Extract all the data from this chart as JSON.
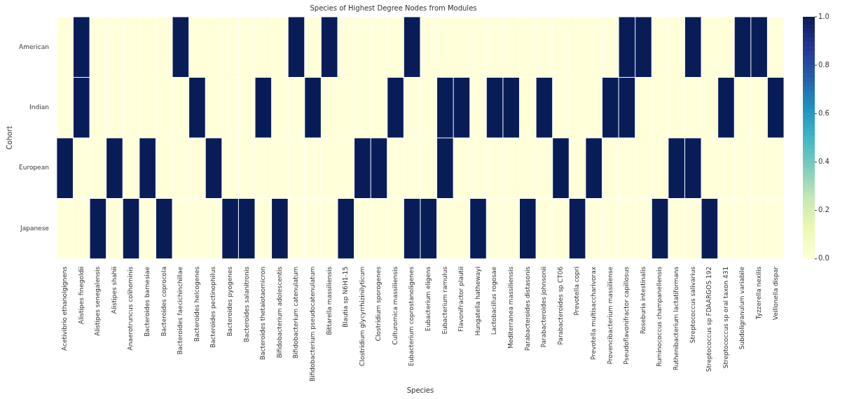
{
  "chart_data": {
    "type": "heatmap",
    "title": "Species of Highest Degree Nodes from Modules",
    "xlabel": "Species",
    "ylabel": "Cohort",
    "categories": [
      "Acetivibrio ethanolgignens",
      "Alistipes finegoldii",
      "Alistipes senegalensis",
      "Alistipes shahii",
      "Anaerotruncus colihominis",
      "Bacteroides barnesiae",
      "Bacteroides coprocola",
      "Bacteroides faecichinchillae",
      "Bacteroides helcogenes",
      "Bacteroides pectinophilus",
      "Bacteroides pyogenes",
      "Bacteroides salanitronis",
      "Bacteroides thetaiotaomicron",
      "Bifidobacterium adolescentis",
      "Bifidobacterium catenulatum",
      "Bifidobacterium pseudocatenulatum",
      "Bittarella massiliensis",
      "Blautia sp N6H1-15",
      "Clostridium glycyrrhizinilyticum",
      "Clostridium sporogenes",
      "Culturomica massiliensis",
      "Eubacterium coprostanoligenes",
      "Eubacterium eligens",
      "Eubacterium ramulus",
      "Flavonifractor plautii",
      "Hungatella hathewayi",
      "Lactobacillus rogosae",
      "Mediterranea massiliensis",
      "Parabacteroides distasonis",
      "Parabacteroides johnsonii",
      "Parabacteroides sp CT06",
      "Prevotella copri",
      "Prevotella multisaccharivorax",
      "Provencibacterium massiliense",
      "Pseudoflavonifractor capillosus",
      "Roseburia intestinalis",
      "Ruminococcus champanellensis",
      "Ruthenibacterium lactatiformans",
      "Streptococcus salivarius",
      "Streptococcus sp FDAARGOS 192",
      "Streptococcus sp oral taxon 431",
      "Subdoligranulum variabile",
      "Tyzzerella nexilis",
      "Veillonella dispar"
    ],
    "y_categories": [
      "American",
      "Indian",
      "European",
      "Japanese"
    ],
    "cells": [
      [
        0,
        1,
        0,
        0,
        0,
        0,
        0,
        1,
        0,
        0,
        0,
        0,
        0,
        0,
        1,
        0,
        1,
        0,
        0,
        0,
        0,
        1,
        0,
        0,
        0,
        0,
        0,
        0,
        0,
        0,
        0,
        0,
        0,
        0,
        1,
        1,
        0,
        0,
        1,
        0,
        0,
        1,
        1,
        0
      ],
      [
        0,
        1,
        0,
        0,
        0,
        0,
        0,
        0,
        1,
        0,
        0,
        0,
        1,
        0,
        0,
        1,
        0,
        0,
        0,
        0,
        1,
        0,
        0,
        1,
        1,
        0,
        1,
        1,
        0,
        1,
        0,
        0,
        0,
        1,
        1,
        0,
        0,
        0,
        0,
        0,
        1,
        0,
        0,
        1
      ],
      [
        1,
        0,
        0,
        1,
        0,
        1,
        0,
        0,
        0,
        1,
        0,
        0,
        0,
        0,
        0,
        0,
        0,
        0,
        1,
        1,
        0,
        0,
        0,
        1,
        0,
        0,
        0,
        0,
        0,
        0,
        1,
        0,
        1,
        0,
        0,
        0,
        0,
        1,
        1,
        0,
        0,
        0,
        0,
        0
      ],
      [
        0,
        0,
        1,
        0,
        1,
        0,
        1,
        0,
        0,
        0,
        1,
        1,
        0,
        1,
        0,
        0,
        0,
        1,
        0,
        0,
        0,
        1,
        1,
        0,
        0,
        1,
        0,
        0,
        1,
        0,
        0,
        1,
        0,
        0,
        0,
        0,
        1,
        0,
        0,
        1,
        0,
        0,
        0,
        0
      ]
    ],
    "clim": [
      0,
      1
    ],
    "cticks": [
      {
        "value": 0,
        "label": "0.0"
      },
      {
        "value": 0.2,
        "label": "0.2"
      },
      {
        "value": 0.4,
        "label": "0.4"
      },
      {
        "value": 0.6,
        "label": "0.6"
      },
      {
        "value": 0.8,
        "label": "0.8"
      },
      {
        "value": 1,
        "label": "1.0"
      }
    ]
  }
}
